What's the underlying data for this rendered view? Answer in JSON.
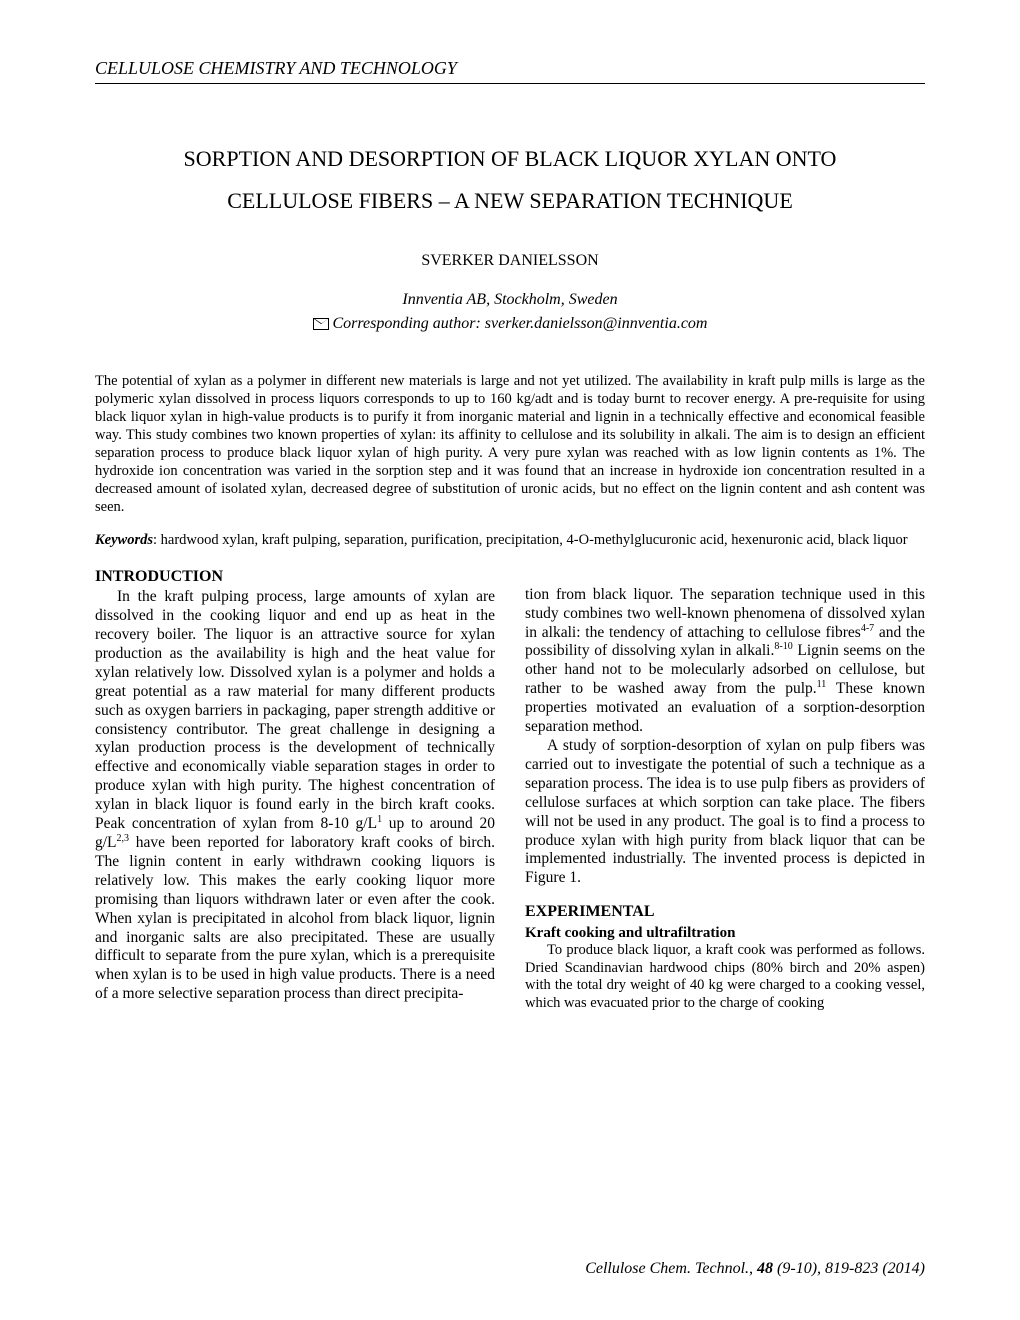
{
  "journal_header": "CELLULOSE CHEMISTRY AND TECHNOLOGY",
  "title_line1": "SORPTION AND DESORPTION OF BLACK LIQUOR XYLAN ONTO",
  "title_line2": "CELLULOSE FIBERS – A NEW SEPARATION TECHNIQUE",
  "author": "SVERKER DANIELSSON",
  "affiliation": "Innventia AB, Stockholm, Sweden",
  "corresponding_label": "Corresponding author: sverker.danielsson@innventia.com",
  "abstract": "The potential of xylan as a polymer in different new materials is large and not yet utilized. The availability in kraft pulp mills is large as the polymeric xylan dissolved in process liquors corresponds to up to 160 kg/adt and is today burnt to recover energy. A pre-requisite for using black liquor xylan in high-value products is to purify it from inorganic material and lignin in a technically effective and economical feasible way. This study combines two known properties of xylan: its affinity to cellulose and its solubility in alkali. The aim is to design an efficient separation process to produce black liquor xylan of high purity. A very pure xylan was reached with as low lignin contents as 1%. The hydroxide ion concentration was varied in the sorption step and it was found that an increase in hydroxide ion concentration resulted in a decreased amount of isolated xylan, decreased degree of substitution of uronic acids, but no effect on the lignin content and ash content was seen.",
  "keywords_label": "Keywords",
  "keywords_text": ": hardwood xylan, kraft pulping, separation, purification, precipitation, 4-O-methylglucuronic acid, hexenuronic acid, black liquor",
  "intro_heading": "INTRODUCTION",
  "intro_col1_html": "In the kraft pulping process, large amounts of xylan are dissolved in the cooking liquor and end up as heat in the recovery boiler. The liquor is an attractive source for xylan production as the availability is high and the heat value for xylan relatively low. Dissolved xylan is a polymer and holds a great potential as a raw material for many different products such as oxygen barriers in packaging, paper strength additive or consistency contributor. The great challenge in designing a xylan production process is the development of technically effective and economically viable separation stages in order to produce xylan with high purity. The highest concentration of xylan in black liquor is found early in the birch kraft cooks. Peak concentration of xylan from 8-10 g/L<sup>1</sup> up to around 20 g/L<sup>2,3</sup> have been reported for laboratory kraft cooks of birch. The lignin content in early withdrawn cooking liquors is relatively low. This makes the early cooking liquor more promising than liquors withdrawn later or even after the cook. When xylan is precipitated in alcohol from black liquor, lignin and inorganic salts are also precipitated. These are usually difficult to separate from the pure xylan, which is a prerequisite when xylan is to be used in high value products. There is a need of a more selective separation process than direct precipita-",
  "intro_col2_p1_html": "tion from black liquor. The separation technique used in this study combines two well-known phenomena of dissolved xylan in alkali: the tendency of attaching to cellulose fibres<sup>4-7</sup> and the possibility of dissolving xylan in alkali.<sup>8-10</sup> Lignin seems on the other hand not to be molecularly adsorbed on cellulose, but rather to be washed away from the pulp.<sup>11</sup> These known properties motivated an evaluation of a sorption-desorption separation method.",
  "intro_col2_p2": "A study of sorption-desorption of xylan on pulp fibers was carried out to investigate the potential of such a technique as a separation process. The idea is to use pulp fibers as providers of cellulose surfaces at which sorption can take place. The fibers will not be used in any product. The goal is to find a process to produce xylan with high purity from black liquor that can be implemented industrially. The invented process is depicted in Figure 1.",
  "experimental_heading": "EXPERIMENTAL",
  "experimental_sub": "Kraft cooking and ultrafiltration",
  "experimental_p1": "To produce black liquor, a kraft cook was performed as follows. Dried Scandinavian hardwood chips (80% birch and 20% aspen) with the total dry weight of 40 kg were charged to a cooking vessel, which was evacuated prior to the charge of cooking",
  "footer_journal": "Cellulose Chem. Technol., ",
  "footer_volume": "48",
  "footer_issue_pages": " (9-10), 819-823 (2014)"
}
